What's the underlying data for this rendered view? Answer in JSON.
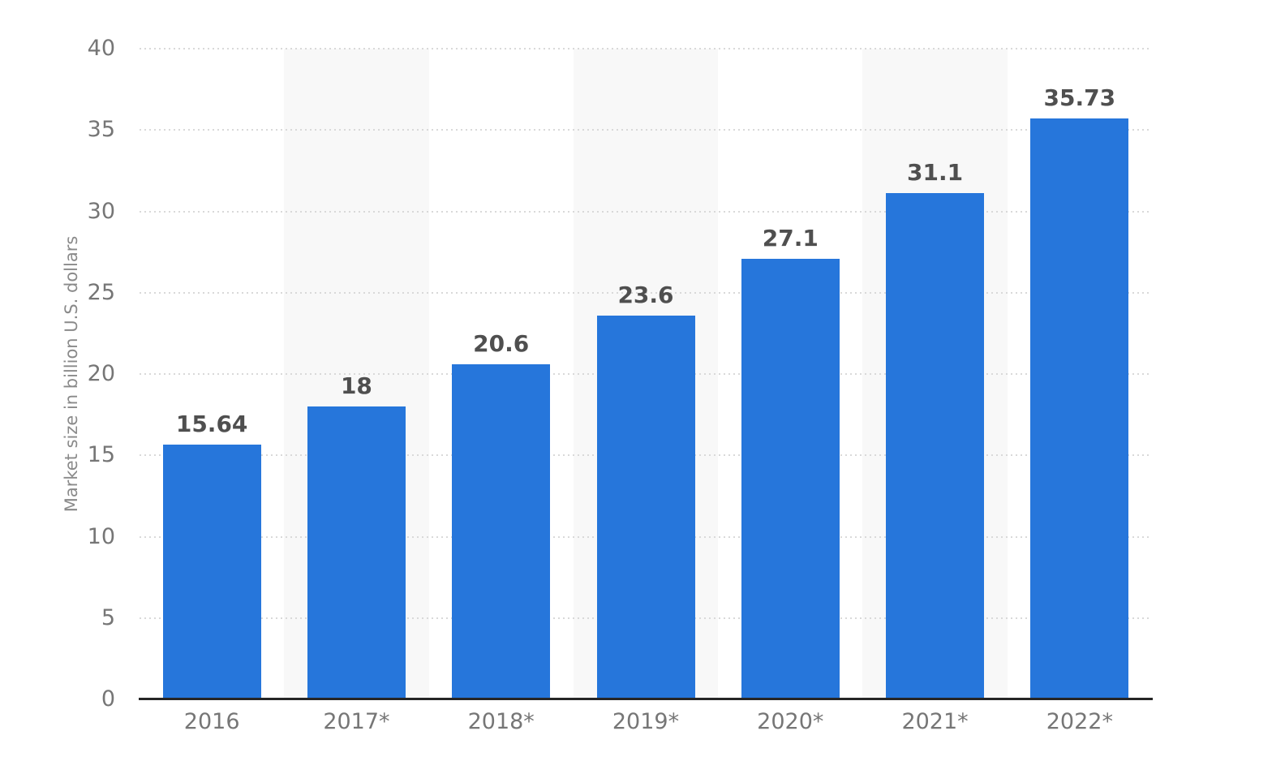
{
  "chart_data": {
    "type": "bar",
    "title": "",
    "categories": [
      "2016",
      "2017*",
      "2018*",
      "2019*",
      "2020*",
      "2021*",
      "2022*"
    ],
    "values": [
      15.64,
      18,
      20.6,
      23.6,
      27.1,
      31.1,
      35.73
    ],
    "value_labels": [
      "15.64",
      "18",
      "20.6",
      "23.6",
      "27.1",
      "31.1",
      "35.73"
    ],
    "xlabel": "",
    "ylabel": "Market size in billion U.S. dollars",
    "ylim": [
      0,
      40
    ],
    "yticks": [
      0,
      5,
      10,
      15,
      20,
      25,
      30,
      35,
      40
    ],
    "grid": "horizontal-dotted",
    "legend_position": "none",
    "striped_columns": [
      1,
      3,
      5
    ],
    "colors": {
      "bar": "#2676DB",
      "column_stripe": "#F8F8F8",
      "gridline": "#D9D9D9",
      "axis_line": "#262626",
      "tick_label": "#767676",
      "axis_title": "#8A8A8A",
      "value_label": "#4F4F4F",
      "background": "#FFFFFF"
    }
  }
}
